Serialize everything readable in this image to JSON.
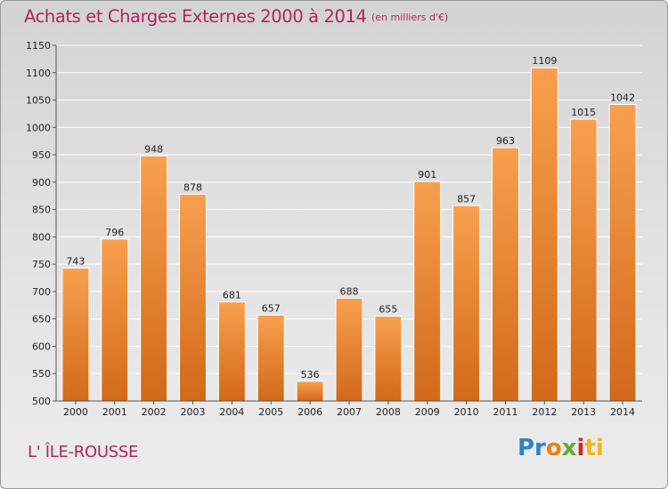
{
  "title": "Achats et Charges Externes 2000 à 2014",
  "subtitle": "(en milliers d'€)",
  "place": "L' ÎLE-ROUSSE",
  "logo": {
    "p1": "Pr",
    "p2": "o",
    "p3": "x",
    "p4": "i",
    "p5": "ti"
  },
  "colors": {
    "title": "#b0265a",
    "bar_top": "#f8a04e",
    "bar_bottom": "#d2691a"
  },
  "chart_data": {
    "type": "bar",
    "title": "Achats et Charges Externes 2000 à 2014",
    "subtitle": "(en milliers d'€)",
    "xlabel": "",
    "ylabel": "",
    "categories": [
      "2000",
      "2001",
      "2002",
      "2003",
      "2004",
      "2005",
      "2006",
      "2007",
      "2008",
      "2009",
      "2010",
      "2011",
      "2012",
      "2013",
      "2014"
    ],
    "values": [
      743,
      796,
      948,
      878,
      681,
      657,
      536,
      688,
      655,
      901,
      857,
      963,
      1109,
      1015,
      1042
    ],
    "ylim": [
      500,
      1150
    ],
    "yticks": [
      500,
      550,
      600,
      650,
      700,
      750,
      800,
      850,
      900,
      950,
      1000,
      1050,
      1100,
      1150
    ],
    "grid": true,
    "legend": "none"
  }
}
